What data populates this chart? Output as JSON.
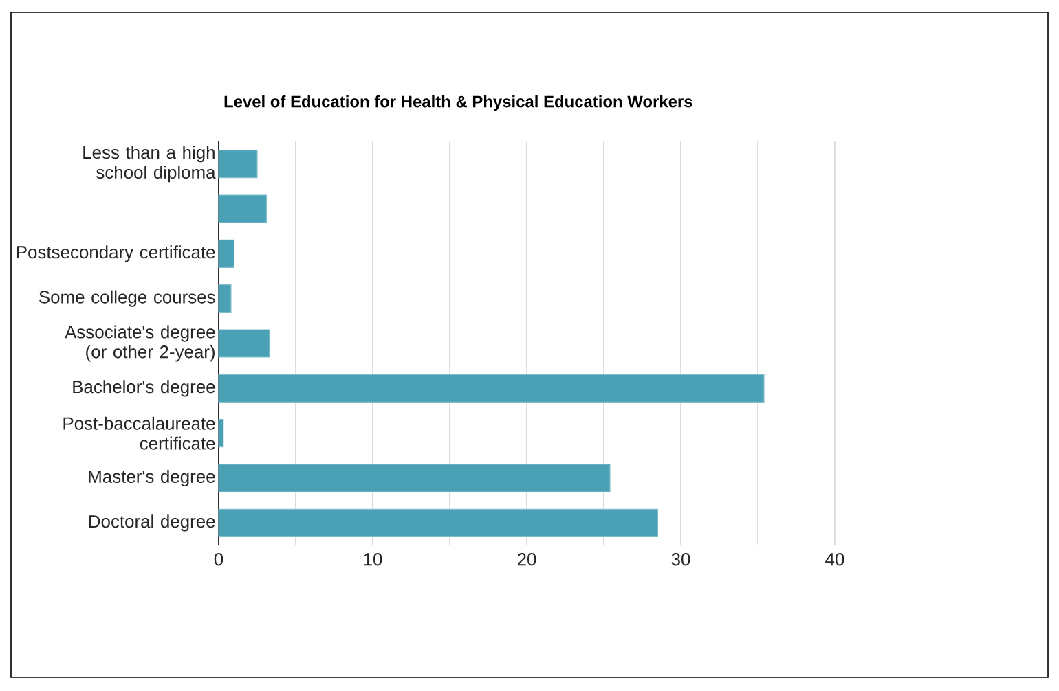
{
  "chart_data": {
    "type": "bar",
    "orientation": "horizontal",
    "title": "Level of Education for Health & Physical Education Workers",
    "categories": [
      "Less than a high school diploma",
      null,
      "Postsecondary certificate",
      "Some college courses",
      "Associate's degree (or other 2-year)",
      "Bachelor's degree",
      "Post-baccalaureate certificate",
      "Master's degree",
      "Doctoral degree"
    ],
    "values": [
      2.5,
      3.1,
      1.0,
      0.8,
      3.3,
      35.4,
      0.3,
      25.4,
      28.5
    ],
    "color": "#4aa0b4",
    "xlim": [
      0,
      40
    ],
    "xticks": [
      0,
      {
        "value": 5,
        "label": null
      },
      10,
      {
        "value": 15,
        "label": null
      },
      20,
      {
        "value": 25,
        "label": null
      },
      30,
      {
        "value": 35,
        "label": null
      },
      40
    ],
    "grid": "x"
  }
}
